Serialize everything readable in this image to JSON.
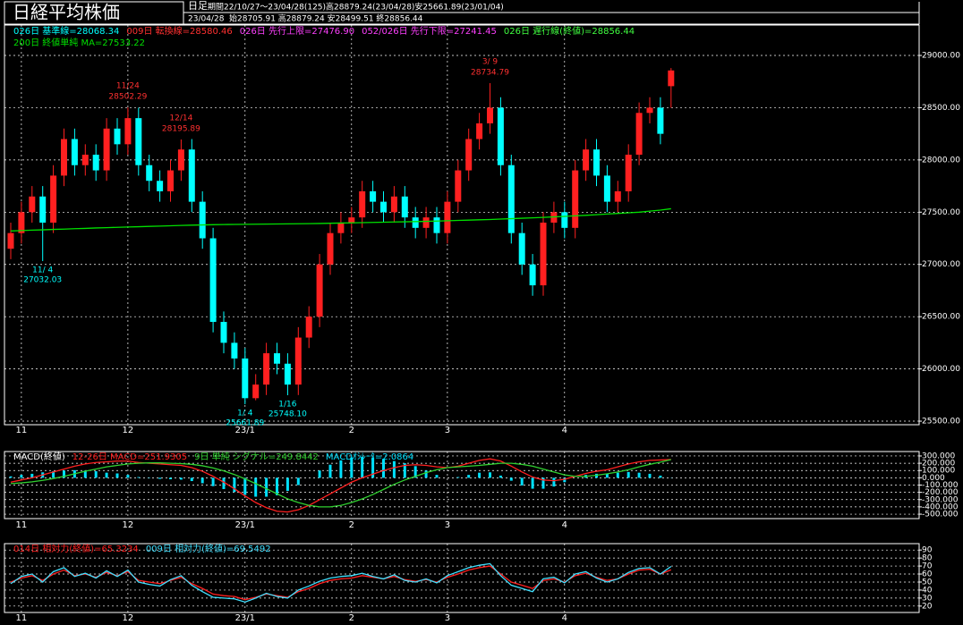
{
  "header": {
    "title": "日経平均株価",
    "interval": "日足",
    "period": "期間22/10/27～23/04/28(125)高28879.24(23/04/28)安25661.89(23/01/04)",
    "date": "23/04/28",
    "ohlc": "始28705.91 高28879.24 安28499.51 終28856.44"
  },
  "chart_data": [
    {
      "type": "candlestick",
      "up_color": "#ff2020",
      "down_color": "#00ffff",
      "grid": true,
      "categories": [
        null,
        "11",
        null,
        null,
        null,
        null,
        null,
        null,
        null,
        null,
        null,
        "12",
        null,
        null,
        null,
        null,
        null,
        null,
        null,
        null,
        null,
        null,
        "23/1",
        null,
        null,
        null,
        null,
        null,
        null,
        null,
        null,
        null,
        "2",
        null,
        null,
        null,
        null,
        null,
        null,
        null,
        null,
        "3",
        null,
        null,
        null,
        null,
        null,
        null,
        null,
        null,
        null,
        null,
        "4",
        null,
        null,
        null,
        null,
        null,
        null,
        null,
        null,
        null,
        null
      ],
      "open": [
        27150,
        27300,
        27500,
        27650,
        27400,
        27850,
        28200,
        27950,
        28050,
        27900,
        28300,
        28150,
        28400,
        27950,
        27800,
        27700,
        27900,
        28100,
        27600,
        27250,
        26450,
        26250,
        26100,
        25720,
        25850,
        26150,
        26050,
        25850,
        26300,
        26500,
        27000,
        27300,
        27400,
        27450,
        27700,
        27600,
        27500,
        27650,
        27450,
        27350,
        27450,
        27300,
        27600,
        27900,
        28200,
        28350,
        28500,
        27950,
        27300,
        27000,
        26800,
        27400,
        27500,
        27350,
        27900,
        28100,
        27850,
        27600,
        27700,
        28050,
        28450,
        28500,
        28705.91
      ],
      "high": [
        27400,
        27600,
        27750,
        27750,
        27950,
        28300,
        28300,
        28150,
        28150,
        28400,
        28400,
        28502.29,
        28500,
        28050,
        27900,
        28000,
        28195.89,
        28200,
        27700,
        27350,
        26550,
        26350,
        26200,
        25950,
        26250,
        26250,
        26150,
        26400,
        26600,
        27100,
        27400,
        27500,
        27550,
        27800,
        27800,
        27700,
        27750,
        27750,
        27550,
        27550,
        27550,
        27700,
        28000,
        28300,
        28450,
        28734.79,
        28600,
        28050,
        27400,
        27100,
        27500,
        27600,
        27600,
        28000,
        28200,
        28200,
        27950,
        27800,
        28150,
        28550,
        28600,
        28600,
        28879.24
      ],
      "low": [
        27050,
        27200,
        27400,
        27032.03,
        27300,
        27750,
        27850,
        27850,
        27800,
        27800,
        28050,
        28050,
        27850,
        27700,
        27600,
        27600,
        27800,
        27500,
        27150,
        26350,
        26150,
        26000,
        25661.89,
        25700,
        25750,
        25950,
        25748.1,
        25750,
        26200,
        26400,
        26900,
        27200,
        27300,
        27350,
        27500,
        27400,
        27400,
        27350,
        27250,
        27250,
        27200,
        27200,
        27500,
        27800,
        28100,
        28250,
        27850,
        27200,
        26900,
        26700,
        26700,
        27300,
        27250,
        27250,
        27800,
        27750,
        27500,
        27500,
        27600,
        27950,
        28350,
        28150,
        28499.51
      ],
      "close": [
        27300,
        27500,
        27650,
        27400,
        27850,
        28200,
        27950,
        28050,
        27900,
        28300,
        28150,
        28400,
        27950,
        27800,
        27700,
        27900,
        28100,
        27600,
        27250,
        26450,
        26250,
        26100,
        25720,
        25850,
        26150,
        26050,
        25850,
        26300,
        26500,
        27000,
        27300,
        27400,
        27450,
        27700,
        27600,
        27500,
        27650,
        27450,
        27350,
        27450,
        27300,
        27600,
        27900,
        28200,
        28350,
        28500,
        27950,
        27300,
        27000,
        26800,
        27400,
        27500,
        27350,
        27900,
        28100,
        27850,
        27600,
        27700,
        28050,
        28450,
        28500,
        28250,
        28856.44
      ],
      "series": [
        {
          "name": "200日 終値単純 MA=27533.22",
          "color": "#00e000",
          "values": [
            27320,
            27324,
            27328,
            27331,
            27335,
            27338,
            27342,
            27345,
            27349,
            27352,
            27355,
            27358,
            27361,
            27364,
            27367,
            27370,
            27373,
            27376,
            27378,
            27380,
            27382,
            27383,
            27384,
            27385,
            27386,
            27387,
            27388,
            27389,
            27390,
            27392,
            27394,
            27396,
            27398,
            27400,
            27402,
            27404,
            27406,
            27408,
            27410,
            27412,
            27415,
            27418,
            27421,
            27424,
            27427,
            27430,
            27434,
            27438,
            27442,
            27446,
            27450,
            27455,
            27460,
            27465,
            27470,
            27476,
            27482,
            27488,
            27494,
            27500,
            27510,
            27520,
            27533.22
          ]
        }
      ],
      "legend_texts": [
        {
          "text": "026日 基準線=28068.34",
          "color": "#00ffff"
        },
        {
          "text": "009日 転換線=28580.46",
          "color": "#ff3030"
        },
        {
          "text": "026日 先行上限=27476.90",
          "color": "#ff40ff"
        },
        {
          "text": "052/026日 先行下限=27241.45",
          "color": "#ff40ff"
        },
        {
          "text": "026日 遅行線(終値)=28856.44",
          "color": "#40ff40"
        }
      ],
      "annotations": [
        {
          "date": "11/ 4",
          "value": 27032.03
        },
        {
          "date": "11/24",
          "value": 28502.29
        },
        {
          "date": "12/14",
          "value": 28195.89
        },
        {
          "date": "1/ 4",
          "value": 25661.89
        },
        {
          "date": "1/16",
          "value": 25748.1,
          "value_label": "25748.10"
        },
        {
          "date": "3/ 9",
          "value": 28734.79
        }
      ],
      "ylim": [
        25466,
        29291
      ],
      "yticks": [
        {
          "value": 25500,
          "label": "25500.00"
        },
        {
          "value": 26000,
          "label": "26000.00"
        },
        {
          "value": 26500,
          "label": "26500.00"
        },
        {
          "value": 27000,
          "label": "27000.00"
        },
        {
          "value": 27500,
          "label": "27500.00"
        },
        {
          "value": 28000,
          "label": "28000.00"
        },
        {
          "value": 28500,
          "label": "28500.00"
        },
        {
          "value": 29000,
          "label": "29000.00"
        }
      ]
    },
    {
      "type": "macd",
      "title": "MACD(終値)",
      "grid": true,
      "series": [
        {
          "name": "12-26日 MACD=251.9305",
          "color": "#ff2020",
          "style": "line",
          "values": [
            -60,
            -30,
            0,
            40,
            80,
            120,
            160,
            190,
            210,
            220,
            230,
            230,
            210,
            200,
            190,
            180,
            170,
            140,
            90,
            20,
            -60,
            -150,
            -250,
            -340,
            -410,
            -460,
            -470,
            -440,
            -380,
            -300,
            -220,
            -140,
            -60,
            0,
            50,
            100,
            140,
            170,
            180,
            170,
            150,
            140,
            160,
            200,
            240,
            260,
            230,
            160,
            80,
            10,
            -30,
            -40,
            -20,
            20,
            60,
            90,
            110,
            150,
            190,
            220,
            240,
            245,
            251.9305
          ]
        },
        {
          "name": "9日 単純 シグナル=249.8442",
          "color": "#30d030",
          "style": "line",
          "values": [
            -80,
            -70,
            -55,
            -35,
            -10,
            20,
            55,
            90,
            120,
            150,
            170,
            190,
            200,
            205,
            205,
            200,
            195,
            185,
            165,
            135,
            95,
            45,
            -15,
            -80,
            -150,
            -220,
            -290,
            -340,
            -380,
            -400,
            -400,
            -380,
            -340,
            -290,
            -230,
            -160,
            -90,
            -30,
            20,
            70,
            110,
            140,
            150,
            160,
            170,
            185,
            200,
            200,
            185,
            160,
            120,
            80,
            40,
            20,
            20,
            35,
            55,
            80,
            110,
            150,
            185,
            215,
            249.8442
          ]
        },
        {
          "name": "MACDｵｼﾚｰﾀ=2.0864",
          "color": "#00e0ff",
          "style": "bar",
          "values": [
            20,
            40,
            55,
            75,
            90,
            100,
            105,
            100,
            90,
            70,
            60,
            40,
            10,
            -5,
            -15,
            -20,
            -25,
            -45,
            -75,
            -115,
            -155,
            -195,
            -235,
            -260,
            -260,
            -240,
            -180,
            -100,
            0,
            100,
            180,
            240,
            280,
            290,
            280,
            260,
            230,
            200,
            160,
            100,
            40,
            0,
            10,
            40,
            70,
            75,
            30,
            -40,
            -105,
            -150,
            -150,
            -120,
            -60,
            0,
            40,
            55,
            55,
            70,
            80,
            70,
            55,
            30,
            2.0864
          ]
        }
      ],
      "ylim": [
        -561,
        361
      ],
      "yticks": [
        {
          "value": 300,
          "label": "300.000"
        },
        {
          "value": 200,
          "label": "200.000"
        },
        {
          "value": 100,
          "label": "100.000"
        },
        {
          "value": 0,
          "label": "0.000"
        },
        {
          "value": -100,
          "label": "-100.000"
        },
        {
          "value": -200,
          "label": "-200.000"
        },
        {
          "value": -300,
          "label": "-300.000"
        },
        {
          "value": -400,
          "label": "-400.000"
        },
        {
          "value": -500,
          "label": "-500.000"
        }
      ]
    },
    {
      "type": "line",
      "grid": true,
      "series": [
        {
          "name": "014日 相対力(終値)=65.3234",
          "color": "#ff2020",
          "values": [
            50,
            55,
            58,
            52,
            60,
            65,
            58,
            60,
            56,
            62,
            58,
            63,
            52,
            50,
            48,
            52,
            56,
            48,
            42,
            35,
            33,
            32,
            28,
            31,
            35,
            33,
            31,
            38,
            42,
            48,
            52,
            54,
            55,
            58,
            56,
            54,
            57,
            53,
            51,
            53,
            50,
            56,
            60,
            65,
            68,
            70,
            60,
            50,
            46,
            42,
            52,
            54,
            50,
            58,
            61,
            56,
            52,
            54,
            60,
            65,
            66,
            60,
            65.3234
          ]
        },
        {
          "name": "009日 相対力(終値)=69.5492",
          "color": "#40e0ff",
          "values": [
            48,
            57,
            60,
            50,
            63,
            68,
            57,
            61,
            55,
            64,
            57,
            65,
            50,
            47,
            45,
            53,
            58,
            46,
            38,
            31,
            30,
            29,
            25,
            30,
            36,
            32,
            30,
            40,
            45,
            51,
            55,
            57,
            58,
            61,
            57,
            54,
            59,
            52,
            50,
            54,
            49,
            58,
            63,
            68,
            71,
            73,
            58,
            46,
            42,
            38,
            54,
            56,
            49,
            60,
            63,
            55,
            50,
            54,
            62,
            67,
            68,
            60,
            69.5492
          ]
        }
      ],
      "ylim": [
        12,
        98
      ],
      "yticks": [
        20,
        30,
        40,
        50,
        60,
        70,
        80,
        90
      ]
    }
  ]
}
